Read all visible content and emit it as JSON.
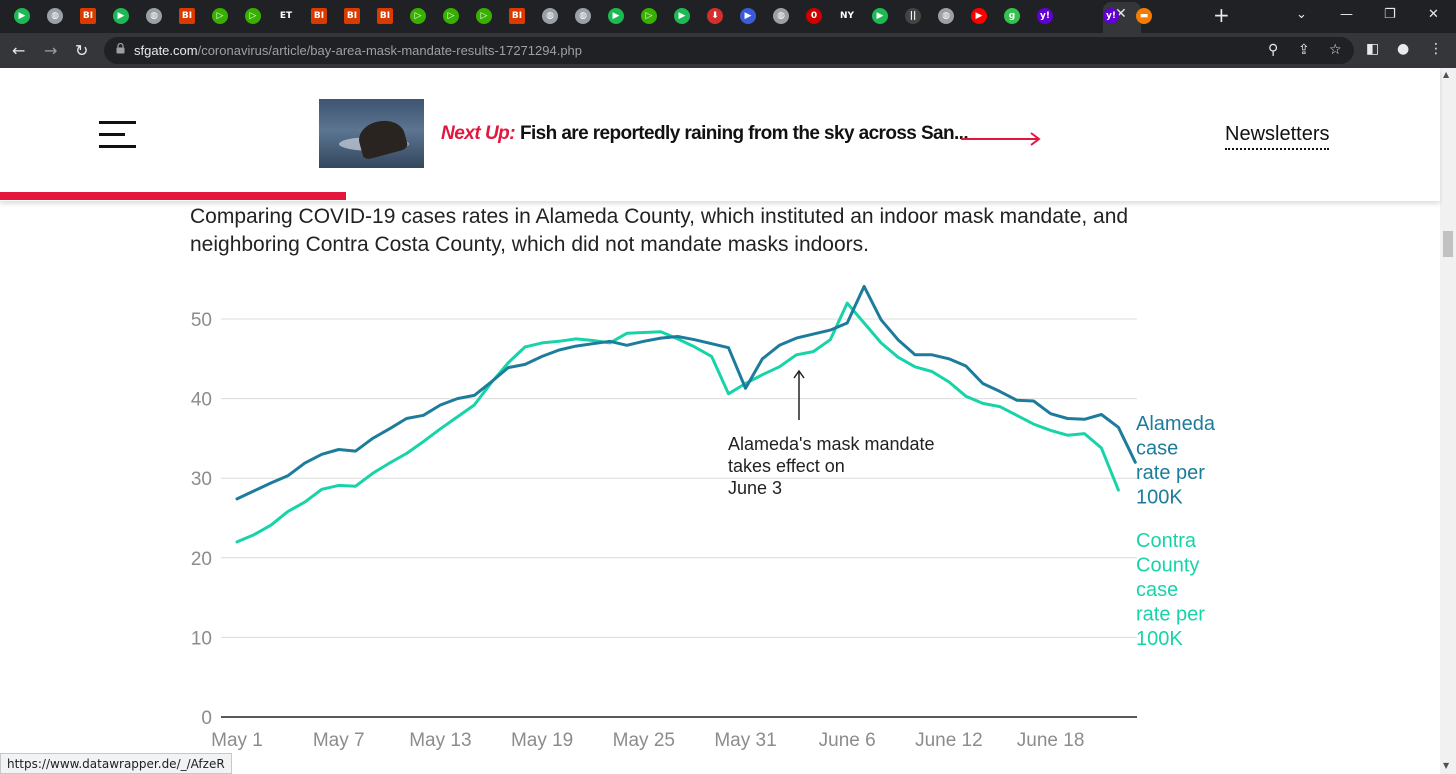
{
  "browser": {
    "tabs": [
      "play",
      "globe",
      "BI",
      "play",
      "globe",
      "BI",
      "play-outline",
      "play-outline",
      "ET",
      "BI",
      "BI",
      "BI",
      "play-outline",
      "play-outline",
      "play-outline",
      "BI",
      "globe",
      "globe",
      "play",
      "play-outline",
      "play",
      "download",
      "chevron",
      "globe",
      "o",
      "NY",
      "play",
      "bars",
      "globe",
      "youtube",
      "g",
      "y!",
      "close",
      "y!",
      "bookmark"
    ],
    "url_host": "sfgate.com",
    "url_path": "/coronavirus/article/bay-area-mask-mandate-results-17271294.php",
    "status_url": "https://www.datawrapper.de/_/AfzeR"
  },
  "header": {
    "next_up_label": "Next Up:",
    "next_up_headline": "Fish are reportedly raining from the sky across San...",
    "newsletters_label": "Newsletters",
    "read_progress": 0.24
  },
  "article": {
    "caption": "Comparing COVID-19 cases rates in Alameda County, which instituted an indoor mask mandate, and neighboring Contra Costa County, which did not mandate masks indoors."
  },
  "chart_data": {
    "type": "line",
    "title": "",
    "xlabel": "",
    "ylabel": "",
    "ylim": [
      0,
      55
    ],
    "yticks": [
      0,
      10,
      20,
      30,
      40,
      50
    ],
    "x_tick_labels": [
      "May 1",
      "May 7",
      "May 13",
      "May 19",
      "May 25",
      "May 31",
      "June 6",
      "June 12",
      "June 18"
    ],
    "series": [
      {
        "name": "Alameda case rate per 100K",
        "color": "#1d7c9c",
        "values": [
          27.4,
          28.4,
          29.4,
          30.3,
          31.9,
          33.0,
          33.6,
          33.4,
          35.0,
          36.2,
          37.5,
          37.9,
          39.2,
          40.0,
          40.4,
          42.1,
          43.9,
          44.3,
          45.3,
          46.1,
          46.6,
          46.9,
          47.2,
          46.7,
          47.2,
          47.6,
          47.8,
          47.4,
          46.9,
          46.4,
          41.3,
          45.0,
          46.7,
          47.6,
          48.1,
          48.6,
          49.5,
          54.1,
          49.9,
          47.4,
          45.5,
          45.5,
          45.0,
          44.1,
          41.9,
          40.9,
          39.8,
          39.7,
          38.1,
          37.5,
          37.4,
          38.0,
          36.4,
          32.0
        ]
      },
      {
        "name": "Contra County case rate per 100K",
        "color": "#17d4a8",
        "values": [
          22.0,
          22.9,
          24.1,
          25.8,
          27.0,
          28.6,
          29.1,
          29.0,
          30.6,
          31.9,
          33.1,
          34.6,
          36.2,
          37.7,
          39.2,
          42.0,
          44.5,
          46.5,
          47.0,
          47.2,
          47.5,
          47.3,
          47.0,
          48.2,
          48.3,
          48.4,
          47.5,
          46.5,
          45.3,
          40.6,
          41.9,
          43.0,
          44.0,
          45.5,
          45.9,
          47.4,
          52.0,
          49.5,
          47.0,
          45.2,
          44.0,
          43.4,
          42.1,
          40.3,
          39.4,
          39.0,
          37.9,
          36.8,
          36.0,
          35.4,
          35.6,
          33.8,
          28.5
        ]
      }
    ],
    "annotation": "Alameda's mask mandate takes effect on June 3"
  }
}
